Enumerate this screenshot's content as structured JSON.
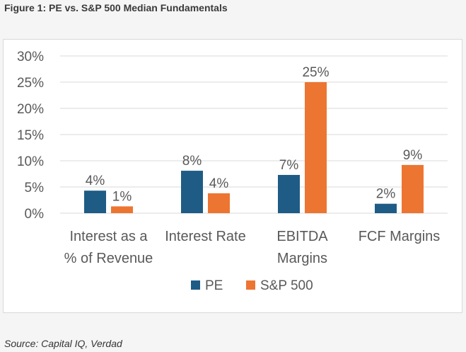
{
  "figure_title": "Figure 1: PE vs. S&P 500 Median Fundamentals",
  "source": "Source: Capital IQ, Verdad",
  "chart_data": {
    "type": "bar",
    "title": "",
    "xlabel": "",
    "ylabel": "",
    "categories": [
      [
        "Interest as a",
        "% of Revenue"
      ],
      [
        "Interest Rate"
      ],
      [
        "EBITDA",
        "Margins"
      ],
      [
        "FCF Margins"
      ]
    ],
    "series": [
      {
        "name": "PE",
        "color": "#1f5c85",
        "values": [
          4.3,
          8.1,
          7.3,
          1.8
        ],
        "labels": [
          "4%",
          "8%",
          "7%",
          "2%"
        ]
      },
      {
        "name": "S&P 500",
        "color": "#ed7532",
        "values": [
          1.3,
          3.8,
          25.0,
          9.2
        ],
        "labels": [
          "1%",
          "4%",
          "25%",
          "9%"
        ]
      }
    ],
    "y_ticks": [
      "0%",
      "5%",
      "10%",
      "15%",
      "20%",
      "25%",
      "30%"
    ],
    "y_tick_values": [
      0,
      5,
      10,
      15,
      20,
      25,
      30
    ],
    "ylim": [
      0,
      30
    ],
    "grid": true,
    "legend_position": "bottom",
    "gridline_color": "#d9d9d9"
  }
}
